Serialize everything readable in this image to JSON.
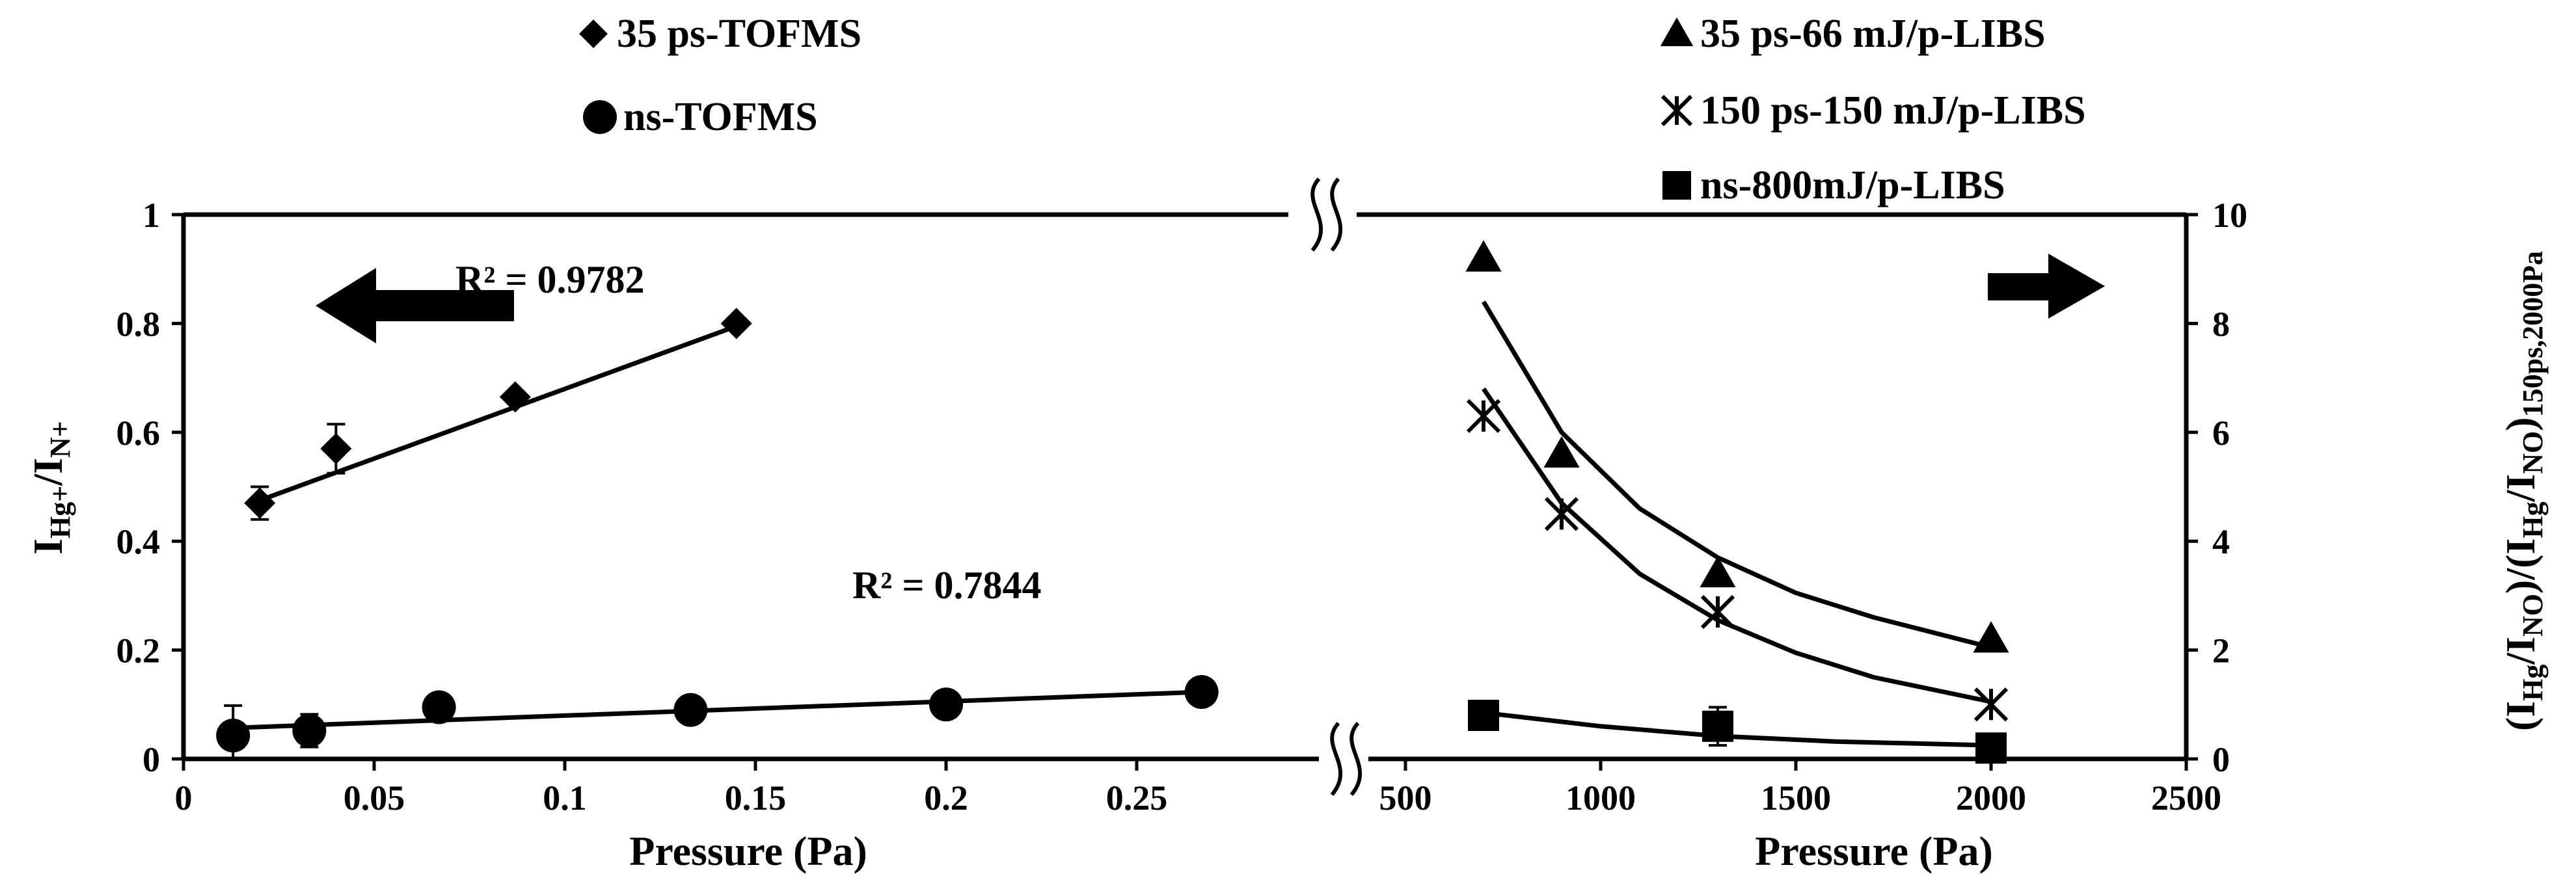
{
  "chart_data": [
    {
      "type": "scatter",
      "panel": "left",
      "xlabel": "Pressure (Pa)",
      "ylabel_parts": [
        {
          "text": "I",
          "sub": false
        },
        {
          "text": "Hg+",
          "sub": true
        },
        {
          "text": "/I",
          "sub": false
        },
        {
          "text": "N+",
          "sub": true
        }
      ],
      "xlim": [
        0,
        0.3
      ],
      "ylim": [
        0,
        1
      ],
      "x_ticks": [
        {
          "v": 0,
          "label": "0"
        },
        {
          "v": 0.05,
          "label": "0.05"
        },
        {
          "v": 0.1,
          "label": "0.1"
        },
        {
          "v": 0.15,
          "label": "0.15"
        },
        {
          "v": 0.2,
          "label": "0.2"
        },
        {
          "v": 0.25,
          "label": "0.25"
        }
      ],
      "y_ticks": [
        {
          "v": 0,
          "label": "0"
        },
        {
          "v": 0.2,
          "label": "0.2"
        },
        {
          "v": 0.4,
          "label": "0.4"
        },
        {
          "v": 0.6,
          "label": "0.6"
        },
        {
          "v": 0.8,
          "label": "0.8"
        },
        {
          "v": 1,
          "label": "1"
        }
      ],
      "series": [
        {
          "name": "35 ps-TOFMS",
          "marker": "diamond",
          "x": [
            0.02,
            0.04,
            0.087,
            0.145
          ],
          "y": [
            0.47,
            0.57,
            0.665,
            0.8
          ],
          "err": [
            0.03,
            0.045,
            0.01,
            0.01
          ],
          "fit": {
            "kind": "linear",
            "x_range": [
              0.02,
              0.145
            ],
            "y_range": [
              0.475,
              0.795
            ],
            "r2_label": "R² = 0.9782"
          }
        },
        {
          "name": "ns-TOFMS",
          "marker": "circle",
          "x": [
            0.013,
            0.033,
            0.067,
            0.133,
            0.2,
            0.267
          ],
          "y": [
            0.043,
            0.052,
            0.095,
            0.09,
            0.1,
            0.123
          ],
          "err": [
            0.055,
            0.03,
            0.01,
            0.01,
            0.01,
            0.01
          ],
          "fit": {
            "kind": "linear",
            "x_range": [
              0.013,
              0.267
            ],
            "y_range": [
              0.057,
              0.123
            ],
            "r2_label": "R² = 0.7844"
          }
        }
      ]
    },
    {
      "type": "scatter",
      "panel": "right",
      "xlabel": "Pressure (Pa)",
      "ylabel_parts": [
        {
          "text": "(I",
          "sub": false
        },
        {
          "text": "Hg",
          "sub": true
        },
        {
          "text": "/I",
          "sub": false
        },
        {
          "text": "NO",
          "sub": true
        },
        {
          "text": ")/(I",
          "sub": false
        },
        {
          "text": "Hg",
          "sub": true
        },
        {
          "text": "/I",
          "sub": false
        },
        {
          "text": "NO",
          "sub": true
        },
        {
          "text": ")",
          "sub": false
        },
        {
          "text": "150ps,2000Pa",
          "sub": true
        }
      ],
      "xlim": [
        300,
        2500
      ],
      "ylim": [
        0,
        10
      ],
      "x_ticks": [
        {
          "v": 500,
          "label": "500"
        },
        {
          "v": 1000,
          "label": "1000"
        },
        {
          "v": 1500,
          "label": "1500"
        },
        {
          "v": 2000,
          "label": "2000"
        },
        {
          "v": 2500,
          "label": "2500"
        }
      ],
      "y_ticks": [
        {
          "v": 0,
          "label": "0"
        },
        {
          "v": 2,
          "label": "2"
        },
        {
          "v": 4,
          "label": "4"
        },
        {
          "v": 6,
          "label": "6"
        },
        {
          "v": 8,
          "label": "8"
        },
        {
          "v": 10,
          "label": "10"
        }
      ],
      "series": [
        {
          "name": "35 ps-66 mJ/p-LIBS",
          "marker": "triangle",
          "x": [
            700,
            900,
            1300,
            2000
          ],
          "y": [
            9.2,
            5.6,
            3.4,
            2.2
          ],
          "fit_curve": {
            "x": [
              700,
              900,
              1100,
              1300,
              1500,
              1700,
              2000
            ],
            "y": [
              8.4,
              6.0,
              4.6,
              3.7,
              3.05,
              2.6,
              2.05
            ]
          }
        },
        {
          "name": "150 ps-150 mJ/p-LIBS",
          "marker": "asterisk",
          "x": [
            700,
            900,
            1300,
            2000
          ],
          "y": [
            6.3,
            4.5,
            2.7,
            1.0
          ],
          "fit_curve": {
            "x": [
              700,
              900,
              1100,
              1300,
              1500,
              1700,
              2000
            ],
            "y": [
              6.8,
              4.7,
              3.4,
              2.55,
              1.95,
              1.5,
              1.05
            ]
          }
        },
        {
          "name": "ns-800mJ/p-LIBS",
          "marker": "square",
          "x": [
            700,
            1300,
            2000
          ],
          "y": [
            0.8,
            0.6,
            0.2
          ],
          "err": [
            0,
            0.35,
            0
          ],
          "fit_curve": {
            "x": [
              700,
              1000,
              1300,
              1600,
              2000
            ],
            "y": [
              0.85,
              0.6,
              0.42,
              0.32,
              0.25
            ]
          }
        }
      ]
    }
  ]
}
